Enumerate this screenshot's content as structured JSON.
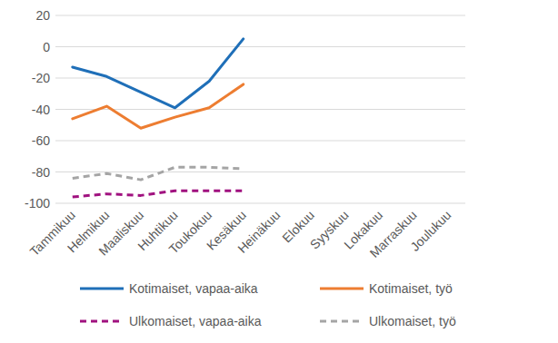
{
  "chart_data": {
    "type": "line",
    "categories": [
      "Tammikuu",
      "Helmikuu",
      "Maaliskuu",
      "Huhtikuu",
      "Toukokuu",
      "Kesäkuu",
      "Heinäkuu",
      "Elokuu",
      "Syyskuu",
      "Lokakuu",
      "Marraskuu",
      "Joulukuu"
    ],
    "series": [
      {
        "name": "Kotimaiset, vapaa-aika",
        "color": "#1f6fb8",
        "line_style": "solid",
        "values": [
          -13,
          -19,
          -29,
          -39,
          -22,
          5,
          null,
          null,
          null,
          null,
          null,
          null
        ]
      },
      {
        "name": "Kotimaiset, työ",
        "color": "#ed7d31",
        "line_style": "solid",
        "values": [
          -46,
          -38,
          -52,
          -45,
          -39,
          -24,
          null,
          null,
          null,
          null,
          null,
          null
        ]
      },
      {
        "name": "Ulkomaiset, vapaa-aika",
        "color": "#a0117f",
        "line_style": "dashed",
        "values": [
          -96,
          -94,
          -95,
          -92,
          -92,
          -92,
          null,
          null,
          null,
          null,
          null,
          null
        ]
      },
      {
        "name": "Ulkomaiset, työ",
        "color": "#a5a5a5",
        "line_style": "dashed",
        "values": [
          -84,
          -81,
          -85,
          -77,
          -77,
          -78,
          null,
          null,
          null,
          null,
          null,
          null
        ]
      }
    ],
    "ylim": [
      -100,
      20
    ],
    "yticks": [
      -100,
      -80,
      -60,
      -40,
      -20,
      0,
      20
    ],
    "grid": true,
    "legend": "bottom"
  }
}
